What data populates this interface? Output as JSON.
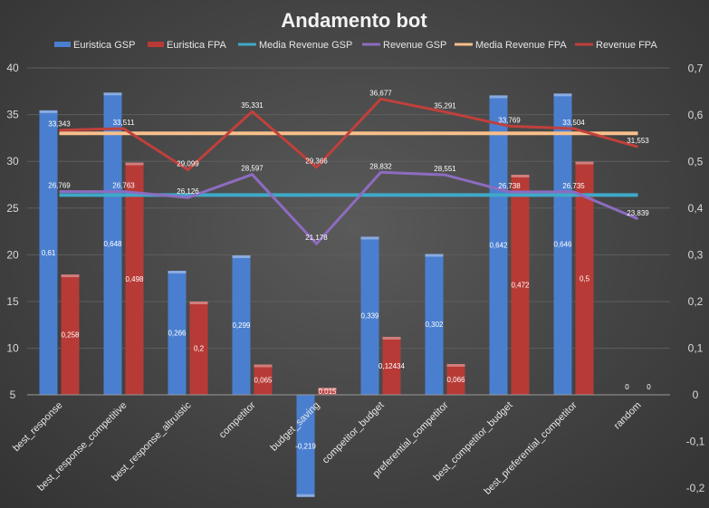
{
  "chart_data": {
    "type": "bar",
    "title": "Andamento bot",
    "categories": [
      "best_response",
      "best_response_competitive",
      "best_response_altruistic",
      "competitor",
      "budget_saving",
      "competitor_budget",
      "preferential_competitor",
      "best_competitor_budget",
      "best_preferential_competitor",
      "random"
    ],
    "primary_axis": {
      "ylim": [
        5,
        40
      ],
      "ticks": [
        "5",
        "10",
        "15",
        "20",
        "25",
        "30",
        "35",
        "40"
      ]
    },
    "secondary_axis": {
      "ylim": [
        -0.2,
        0.7
      ],
      "ticks": [
        "-0,2",
        "-0,1",
        "0",
        "0,1",
        "0,2",
        "0,3",
        "0,4",
        "0,5",
        "0,6",
        "0,7"
      ]
    },
    "legend": [
      "Euristica GSP",
      "Euristica FPA",
      "Media Revenue GSP",
      "Revenue GSP",
      "Media Revenue FPA",
      "Revenue FPA"
    ],
    "colors": {
      "Euristica GSP": "#4a7fd0",
      "Euristica FPA": "#b83a36",
      "Media Revenue GSP": "#3fa9c8",
      "Revenue GSP": "#8d6cc0",
      "Media Revenue FPA": "#f7bf8a",
      "Revenue FPA": "#c0403b"
    },
    "series": [
      {
        "name": "Euristica GSP",
        "type": "bar",
        "axis": "secondary",
        "values": [
          0.61,
          0.648,
          0.266,
          0.299,
          -0.219,
          0.339,
          0.302,
          0.642,
          0.646,
          0
        ],
        "labels": [
          "0,61",
          "0,648",
          "0,266",
          "0,299",
          "-0,219",
          "0,339",
          "0,302",
          "0,642",
          "0,646",
          "0"
        ]
      },
      {
        "name": "Euristica FPA",
        "type": "bar",
        "axis": "secondary",
        "values": [
          0.258,
          0.498,
          0.2,
          0.065,
          0.015,
          0.12434,
          0.066,
          0.472,
          0.5,
          0
        ],
        "labels": [
          "0,258",
          "0,498",
          "0,2",
          "0,065",
          "0,015",
          "0,12434",
          "0,066",
          "0,472",
          "0,5",
          "0"
        ]
      },
      {
        "name": "Media Revenue GSP",
        "type": "line",
        "axis": "primary",
        "values": [
          26.4,
          26.4,
          26.4,
          26.4,
          26.4,
          26.4,
          26.4,
          26.4,
          26.4,
          26.4
        ]
      },
      {
        "name": "Revenue GSP",
        "type": "line",
        "axis": "primary",
        "values": [
          26.769,
          26.763,
          26.126,
          28.597,
          21.178,
          28.832,
          28.551,
          26.738,
          26.735,
          23.839
        ],
        "labels": [
          "26,769",
          "26,763",
          "26,126",
          "28,597",
          "21,178",
          "28,832",
          "28,551",
          "26,738",
          "26,735",
          "23,839"
        ]
      },
      {
        "name": "Media Revenue FPA",
        "type": "line",
        "axis": "primary",
        "values": [
          33,
          33,
          33,
          33,
          33,
          33,
          33,
          33,
          33,
          33
        ]
      },
      {
        "name": "Revenue FPA",
        "type": "line",
        "axis": "primary",
        "values": [
          33.343,
          33.511,
          29.099,
          35.331,
          29.366,
          36.677,
          35.291,
          33.769,
          33.504,
          31.553
        ],
        "labels": [
          "33,343",
          "33,511",
          "29,099",
          "35,331",
          "29,366",
          "36,677",
          "35,291",
          "33,769",
          "33,504",
          "31,553"
        ]
      }
    ]
  }
}
